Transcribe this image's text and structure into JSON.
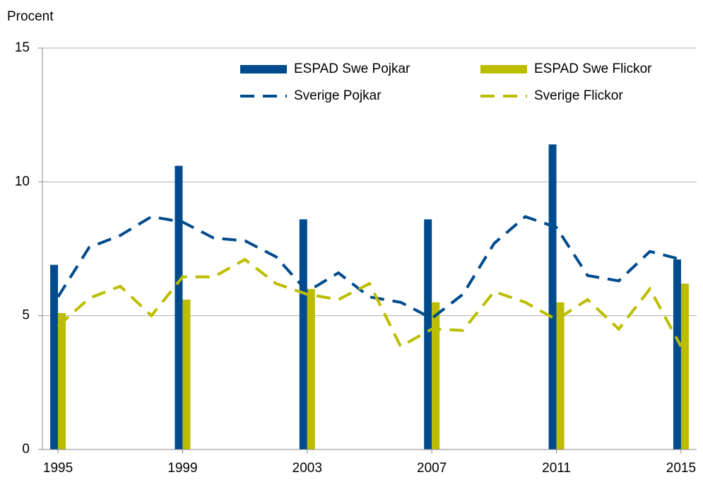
{
  "chart_data": {
    "type": "combo",
    "ylabel": "Procent",
    "x": [
      1995,
      1996,
      1997,
      1998,
      1999,
      2000,
      2001,
      2002,
      2003,
      2004,
      2005,
      2006,
      2007,
      2008,
      2009,
      2010,
      2011,
      2012,
      2013,
      2014,
      2015
    ],
    "series": [
      {
        "name": "ESPAD Swe Pojkar",
        "type": "bar",
        "color": "#004b8d",
        "x": [
          1995,
          1999,
          2003,
          2007,
          2011,
          2015
        ],
        "values": [
          6.9,
          10.6,
          8.6,
          8.6,
          11.4,
          7.1
        ]
      },
      {
        "name": "ESPAD Swe Flickor",
        "type": "bar",
        "color": "#bdbd00",
        "x": [
          1995,
          1999,
          2003,
          2007,
          2011,
          2015
        ],
        "values": [
          5.1,
          5.6,
          6.0,
          5.5,
          5.5,
          6.2
        ]
      },
      {
        "name": "Sverige Pojkar",
        "type": "line",
        "linestyle": "dashed",
        "color": "#004b8d",
        "values": [
          5.7,
          7.55,
          8.0,
          8.7,
          8.5,
          7.9,
          7.8,
          7.2,
          5.9,
          6.6,
          5.7,
          5.5,
          4.9,
          5.8,
          7.7,
          8.7,
          8.3,
          6.5,
          6.3,
          7.4,
          7.1
        ]
      },
      {
        "name": "Sverige Flickor",
        "type": "line",
        "linestyle": "dashed",
        "color": "#bdbd00",
        "values": [
          4.6,
          5.65,
          6.1,
          5.0,
          6.45,
          6.45,
          7.1,
          6.2,
          5.8,
          5.6,
          6.2,
          3.85,
          4.5,
          4.45,
          5.9,
          5.5,
          4.85,
          5.6,
          4.5,
          6.0,
          3.85
        ]
      }
    ],
    "xlim": [
      1994.5,
      2015.5
    ],
    "xticks": [
      1995,
      1999,
      2003,
      2007,
      2011,
      2015
    ],
    "ylim": [
      0,
      15
    ],
    "yticks": [
      0,
      5,
      10,
      15
    ],
    "grid": true,
    "legend": "top-right"
  }
}
